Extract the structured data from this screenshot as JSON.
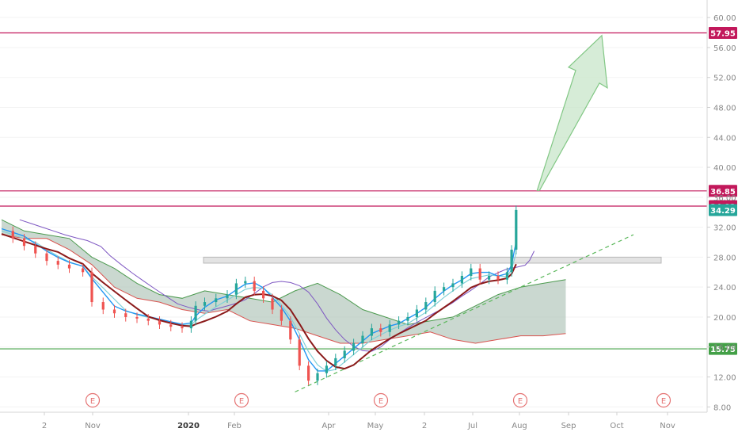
{
  "chart_data": {
    "type": "candlestick",
    "title": "",
    "xlabel": "",
    "ylabel": "",
    "ylim": [
      7.5,
      61.5
    ],
    "x_tick_labels": [
      "2",
      "Nov",
      "2020",
      "Feb",
      "Apr",
      "May",
      "2",
      "Jul",
      "Aug",
      "Sep",
      "Oct",
      "Nov"
    ],
    "y_tick_labels": [
      "8.00",
      "12.00",
      "16.00",
      "20.00",
      "24.00",
      "28.00",
      "32.00",
      "36.00",
      "40.00",
      "44.00",
      "48.00",
      "52.00",
      "56.00",
      "60.00"
    ],
    "y_tick_values": [
      8,
      12,
      16,
      20,
      24,
      28,
      32,
      36,
      40,
      44,
      48,
      52,
      56,
      60
    ],
    "earnings_markers": [
      {
        "label": "E",
        "month": "Nov 2019"
      },
      {
        "label": "E",
        "month": "Feb 2020"
      },
      {
        "label": "E",
        "month": "May 2020"
      },
      {
        "label": "E",
        "month": "Aug 2020"
      },
      {
        "label": "E",
        "month": "Nov 2020"
      }
    ],
    "horizontal_levels": [
      {
        "value": 57.95,
        "label": "57.95",
        "color": "#c2185b"
      },
      {
        "value": 36.85,
        "label": "36.85",
        "color": "#c2185b"
      },
      {
        "value": 34.82,
        "label": "34.82",
        "color": "#c2185b"
      },
      {
        "value": 15.75,
        "label": "15.75",
        "color": "#43a047"
      }
    ],
    "last_price": {
      "value": 34.29,
      "label": "34.29",
      "color": "#26a69a"
    },
    "resistance_zone": [
      27.2,
      28.0
    ],
    "price_path": [
      [
        0,
        31.5
      ],
      [
        5,
        30.5
      ],
      [
        10,
        29.5
      ],
      [
        15,
        28.5
      ],
      [
        20,
        27.5
      ],
      [
        25,
        27.0
      ],
      [
        30,
        26.5
      ],
      [
        36,
        26.0
      ],
      [
        40,
        22.0
      ],
      [
        45,
        21.0
      ],
      [
        50,
        20.5
      ],
      [
        55,
        20.0
      ],
      [
        60,
        19.8
      ],
      [
        65,
        19.5
      ],
      [
        70,
        19.0
      ],
      [
        75,
        18.7
      ],
      [
        80,
        18.5
      ],
      [
        84,
        19.5
      ],
      [
        86,
        21.5
      ],
      [
        90,
        22.0
      ],
      [
        95,
        22.5
      ],
      [
        100,
        23.0
      ],
      [
        104,
        24.5
      ],
      [
        108,
        24.8
      ],
      [
        112,
        23.5
      ],
      [
        116,
        22.5
      ],
      [
        120,
        21.0
      ],
      [
        124,
        19.5
      ],
      [
        128,
        17.0
      ],
      [
        132,
        13.5
      ],
      [
        136,
        11.5
      ],
      [
        140,
        12.5
      ],
      [
        144,
        13.5
      ],
      [
        148,
        14.5
      ],
      [
        152,
        15.5
      ],
      [
        156,
        16.5
      ],
      [
        160,
        17.5
      ],
      [
        164,
        18.5
      ],
      [
        168,
        18.0
      ],
      [
        172,
        19.0
      ],
      [
        176,
        19.5
      ],
      [
        180,
        20.0
      ],
      [
        184,
        21.0
      ],
      [
        188,
        22.0
      ],
      [
        192,
        23.5
      ],
      [
        196,
        24.0
      ],
      [
        200,
        24.5
      ],
      [
        204,
        25.5
      ],
      [
        208,
        26.5
      ],
      [
        212,
        25.0
      ],
      [
        216,
        25.5
      ],
      [
        220,
        25.0
      ],
      [
        224,
        26.0
      ],
      [
        226,
        29.0
      ],
      [
        228,
        34.3
      ]
    ],
    "cloud_upper": [
      [
        0,
        33.0
      ],
      [
        10,
        31.5
      ],
      [
        20,
        31.0
      ],
      [
        30,
        30.5
      ],
      [
        40,
        28.0
      ],
      [
        50,
        26.5
      ],
      [
        60,
        24.5
      ],
      [
        70,
        23.0
      ],
      [
        80,
        22.5
      ],
      [
        90,
        23.5
      ],
      [
        100,
        23.0
      ],
      [
        110,
        22.5
      ],
      [
        120,
        22.0
      ],
      [
        130,
        23.5
      ],
      [
        140,
        24.5
      ],
      [
        150,
        23.0
      ],
      [
        160,
        21.0
      ],
      [
        170,
        20.0
      ],
      [
        180,
        19.0
      ],
      [
        190,
        19.5
      ],
      [
        200,
        20.0
      ],
      [
        210,
        21.5
      ],
      [
        220,
        23.0
      ],
      [
        230,
        24.0
      ],
      [
        240,
        24.5
      ],
      [
        250,
        25.0
      ]
    ],
    "cloud_lower": [
      [
        0,
        31.0
      ],
      [
        10,
        30.5
      ],
      [
        20,
        30.5
      ],
      [
        30,
        29.0
      ],
      [
        40,
        27.0
      ],
      [
        50,
        24.0
      ],
      [
        60,
        22.5
      ],
      [
        70,
        22.0
      ],
      [
        80,
        21.0
      ],
      [
        90,
        20.5
      ],
      [
        100,
        21.0
      ],
      [
        110,
        19.5
      ],
      [
        120,
        19.0
      ],
      [
        130,
        18.5
      ],
      [
        140,
        17.5
      ],
      [
        150,
        16.5
      ],
      [
        160,
        16.5
      ],
      [
        170,
        17.0
      ],
      [
        180,
        17.5
      ],
      [
        190,
        18.0
      ],
      [
        200,
        17.0
      ],
      [
        210,
        16.5
      ],
      [
        220,
        17.0
      ],
      [
        230,
        17.5
      ],
      [
        240,
        17.5
      ],
      [
        250,
        17.8
      ]
    ],
    "ascending_trendline": [
      [
        130,
        10.0
      ],
      [
        280,
        31.0
      ]
    ],
    "projection_arrow": {
      "from": [
        238,
        36.9
      ],
      "to": [
        260,
        57.6
      ]
    }
  }
}
